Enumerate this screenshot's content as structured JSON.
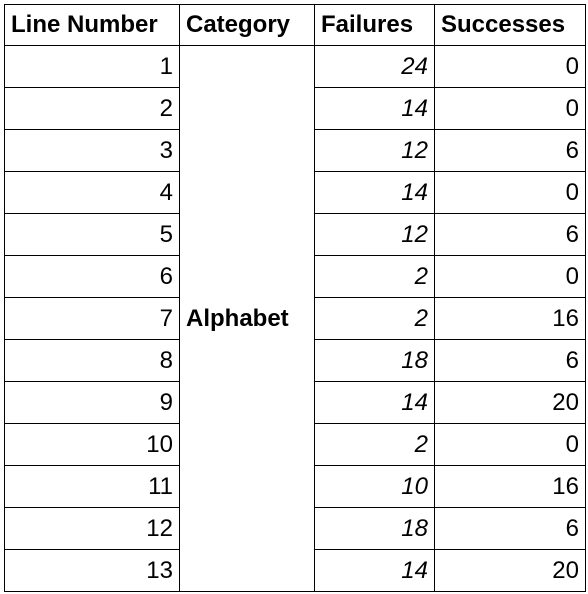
{
  "table": {
    "headers": [
      "Line Number",
      "Category",
      "Failures",
      "Successes"
    ],
    "category": "Alphabet",
    "rows": [
      {
        "line": "1",
        "failures": "24",
        "successes": "0"
      },
      {
        "line": "2",
        "failures": "14",
        "successes": "0"
      },
      {
        "line": "3",
        "failures": "12",
        "successes": "6"
      },
      {
        "line": "4",
        "failures": "14",
        "successes": "0"
      },
      {
        "line": "5",
        "failures": "12",
        "successes": "6"
      },
      {
        "line": "6",
        "failures": "2",
        "successes": "0"
      },
      {
        "line": "7",
        "failures": "2",
        "successes": "16"
      },
      {
        "line": "8",
        "failures": "18",
        "successes": "6"
      },
      {
        "line": "9",
        "failures": "14",
        "successes": "20"
      },
      {
        "line": "10",
        "failures": "2",
        "successes": "0"
      },
      {
        "line": "11",
        "failures": "10",
        "successes": "16"
      },
      {
        "line": "12",
        "failures": "18",
        "successes": "6"
      },
      {
        "line": "13",
        "failures": "14",
        "successes": "20"
      }
    ]
  }
}
